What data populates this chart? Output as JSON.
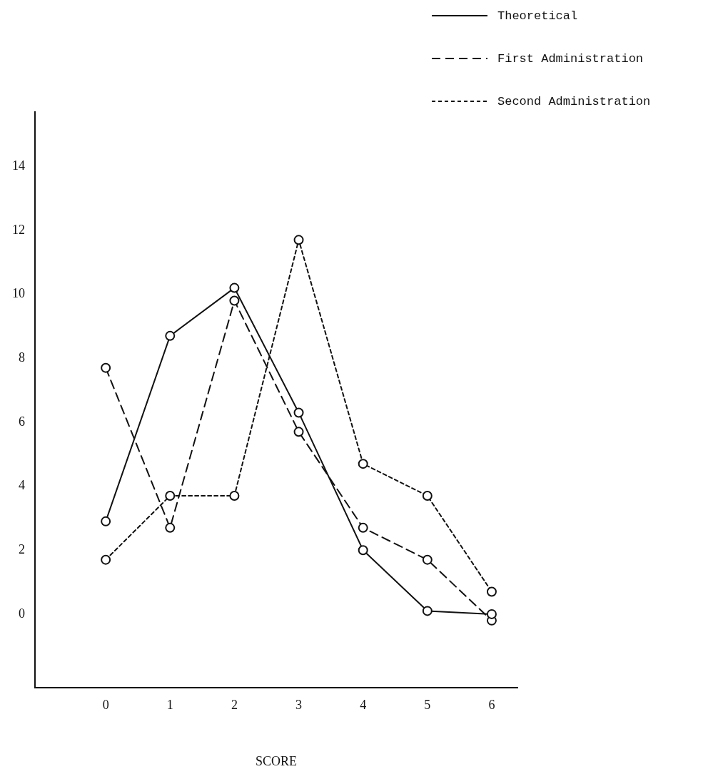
{
  "chart_data": {
    "type": "line",
    "xlabel": "SCORE",
    "x": [
      0,
      1,
      2,
      3,
      4,
      5,
      6
    ],
    "series": [
      {
        "name": "Theoretical",
        "color": "#111111",
        "line_style": "solid",
        "values": [
          2.9,
          8.7,
          10.2,
          6.3,
          2.0,
          0.1,
          0.0
        ]
      },
      {
        "name": "First Administration",
        "color": "#111111",
        "line_style": "dashed",
        "values": [
          7.7,
          2.7,
          9.8,
          5.7,
          2.7,
          1.7,
          -0.2
        ]
      },
      {
        "name": "Second Administration",
        "color": "#111111",
        "line_style": "dotted",
        "values": [
          1.7,
          3.7,
          3.7,
          11.7,
          4.7,
          3.7,
          0.7
        ]
      }
    ],
    "xlim": [
      -1.1,
      6.4
    ],
    "xticks": [
      0,
      1,
      2,
      3,
      4,
      5,
      6
    ],
    "ylim": [
      -2.3,
      15.7
    ],
    "yticks": [
      0,
      2,
      4,
      6,
      8,
      10,
      12,
      14
    ],
    "grid": false,
    "legend": "top right",
    "marker": "circle"
  }
}
